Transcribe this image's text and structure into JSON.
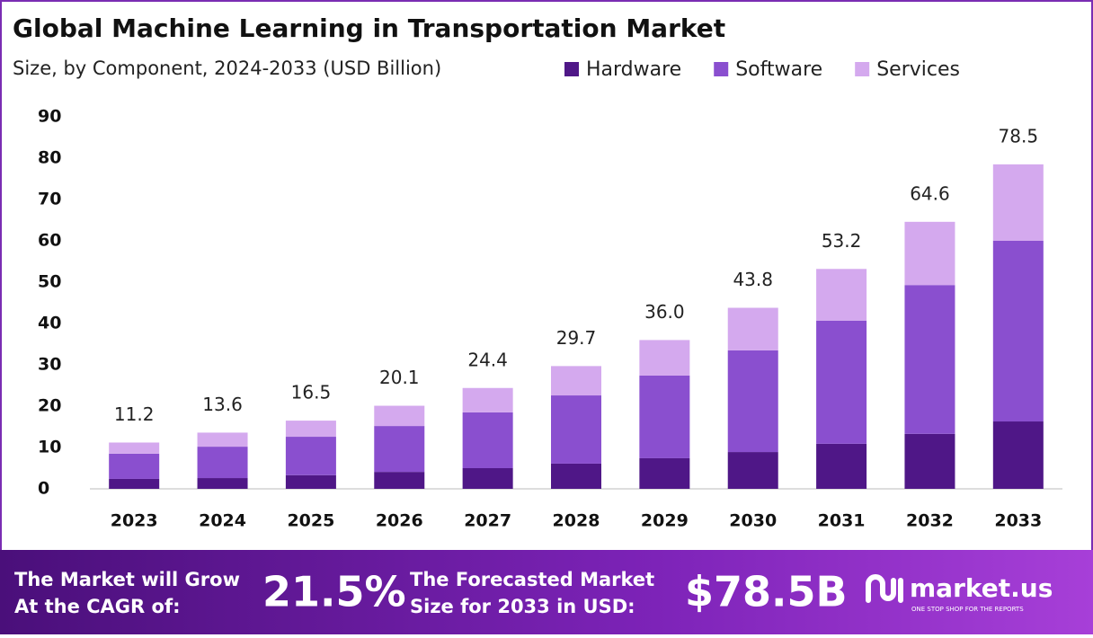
{
  "chart_data": {
    "type": "stacked-bar",
    "title": "Global Machine Learning in Transportation Market",
    "subtitle": "Size, by Component, 2024-2033 (USD Billion)",
    "categories": [
      "2023",
      "2024",
      "2025",
      "2026",
      "2027",
      "2028",
      "2029",
      "2030",
      "2031",
      "2032",
      "2033"
    ],
    "series": [
      {
        "name": "Hardware",
        "color": "#4f1787",
        "values": [
          2.4,
          2.6,
          3.3,
          4.1,
          5.0,
          6.1,
          7.4,
          8.9,
          10.9,
          13.3,
          16.3
        ]
      },
      {
        "name": "Software",
        "color": "#8a4fcf",
        "values": [
          6.1,
          7.6,
          9.3,
          11.1,
          13.5,
          16.5,
          20.0,
          24.6,
          29.8,
          36.0,
          43.7
        ]
      },
      {
        "name": "Services",
        "color": "#d4a9ee",
        "values": [
          2.7,
          3.4,
          3.9,
          4.9,
          5.9,
          7.1,
          8.6,
          10.3,
          12.5,
          15.3,
          18.5
        ]
      }
    ],
    "totals": [
      11.2,
      13.6,
      16.5,
      20.1,
      24.4,
      29.7,
      36.0,
      43.8,
      53.2,
      64.6,
      78.5
    ],
    "total_labels": [
      "11.2",
      "13.6",
      "16.5",
      "20.1",
      "24.4",
      "29.7",
      "36.0",
      "43.8",
      "53.2",
      "64.6",
      "78.5"
    ],
    "ylim": [
      0,
      90
    ],
    "yticks": [
      0,
      10,
      20,
      30,
      40,
      50,
      60,
      70,
      80,
      90
    ],
    "grid": false,
    "legend": "top"
  },
  "footer": {
    "cagr_text": [
      "The Market will Grow",
      "At the CAGR of:"
    ],
    "cagr": "21.5%",
    "forecast_text": [
      "The Forecasted Market",
      "Size for 2033 in USD:"
    ],
    "forecast": "$78.5B",
    "brand": "market.us",
    "tagline": "ONE STOP SHOP FOR THE REPORTS"
  }
}
